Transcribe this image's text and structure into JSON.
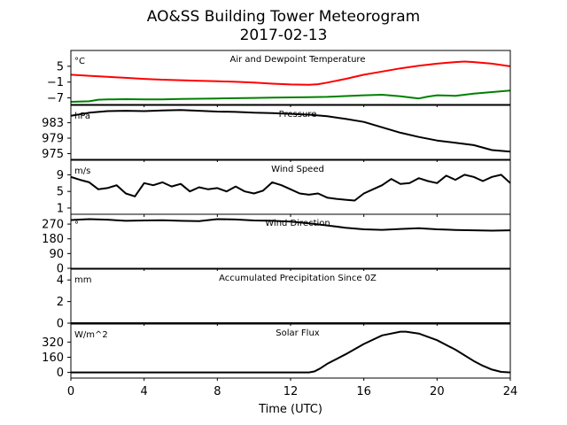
{
  "chart_data": {
    "type": "line",
    "title": "AO&SS Building Tower Meteorogram",
    "subtitle": "2017-02-13",
    "xlabel": "Time (UTC)",
    "xlim": [
      0,
      24
    ],
    "xticks": [
      0,
      4,
      8,
      12,
      16,
      20,
      24
    ],
    "panels": [
      {
        "id": "temperature",
        "title": "Air and Dewpoint Temperature",
        "unit": "°C",
        "ylim": [
          -9.5,
          11
        ],
        "yticks": [
          5,
          -1,
          -7
        ],
        "ytick_labels": [
          "5",
          "−1",
          "−7"
        ],
        "series": [
          {
            "color": "#ff0000",
            "x": [
              0,
              1,
              2,
              3,
              4,
              5,
              6,
              7,
              8,
              9,
              10,
              11,
              12,
              13,
              13.5,
              14,
              15,
              16,
              17,
              18,
              19,
              20,
              21,
              21.5,
              22,
              23,
              24
            ],
            "values": [
              1.8,
              1.4,
              1.0,
              0.6,
              0.2,
              -0.1,
              -0.3,
              -0.5,
              -0.7,
              -0.9,
              -1.2,
              -1.6,
              -1.9,
              -2.0,
              -1.8,
              -1.2,
              0.2,
              1.8,
              3.0,
              4.2,
              5.2,
              6.0,
              6.6,
              6.8,
              6.6,
              6.0,
              5.0
            ]
          },
          {
            "color": "#008000",
            "x": [
              0,
              1,
              1.5,
              2,
              3,
              4,
              5,
              6,
              7,
              8,
              9,
              10,
              11,
              12,
              13,
              14,
              15,
              16,
              17,
              18,
              19,
              19.5,
              20,
              21,
              22,
              23,
              24
            ],
            "values": [
              -8.5,
              -8.3,
              -7.7,
              -7.6,
              -7.5,
              -7.6,
              -7.6,
              -7.4,
              -7.3,
              -7.2,
              -7.1,
              -7.0,
              -6.9,
              -6.8,
              -6.7,
              -6.6,
              -6.3,
              -6.0,
              -5.8,
              -6.4,
              -7.2,
              -6.5,
              -6.0,
              -6.2,
              -5.4,
              -4.8,
              -4.2
            ]
          }
        ]
      },
      {
        "id": "pressure",
        "title": "Pressure",
        "unit": "hPa",
        "ylim": [
          973.5,
          987.5
        ],
        "yticks": [
          983,
          979,
          975
        ],
        "ytick_labels": [
          "983",
          "979",
          "975"
        ],
        "series": [
          {
            "color": "#000000",
            "x": [
              0,
              1,
              2,
              3,
              4,
              5,
              6,
              7,
              8,
              9,
              10,
              11,
              12,
              13,
              14,
              15,
              16,
              17,
              18,
              19,
              20,
              21,
              22,
              23,
              24
            ],
            "values": [
              984.8,
              985.6,
              986.0,
              986.1,
              986.0,
              986.2,
              986.3,
              986.1,
              985.9,
              985.8,
              985.6,
              985.5,
              985.3,
              985.1,
              984.7,
              984.0,
              983.2,
              981.8,
              980.4,
              979.3,
              978.4,
              977.8,
              977.2,
              975.9,
              975.5
            ]
          }
        ]
      },
      {
        "id": "wind_speed",
        "title": "Wind Speed",
        "unit": "m/s",
        "ylim": [
          -0.5,
          12.5
        ],
        "yticks": [
          9,
          5,
          1
        ],
        "ytick_labels": [
          "9",
          "5",
          "1"
        ],
        "series": [
          {
            "color": "#000000",
            "x": [
              0,
              0.5,
              1,
              1.5,
              2,
              2.5,
              3,
              3.5,
              4,
              4.5,
              5,
              5.5,
              6,
              6.5,
              7,
              7.5,
              8,
              8.5,
              9,
              9.5,
              10,
              10.5,
              11,
              11.5,
              12,
              12.5,
              13,
              13.5,
              14,
              14.5,
              15,
              15.5,
              16,
              16.5,
              17,
              17.5,
              18,
              18.5,
              19,
              19.5,
              20,
              20.5,
              21,
              21.5,
              22,
              22.5,
              23,
              23.5,
              24
            ],
            "values": [
              8.5,
              7.8,
              7.2,
              5.5,
              5.8,
              6.5,
              4.5,
              3.8,
              7.0,
              6.5,
              7.2,
              6.2,
              6.8,
              5.0,
              6.0,
              5.5,
              5.8,
              5.0,
              6.2,
              5.0,
              4.5,
              5.2,
              7.2,
              6.5,
              5.5,
              4.5,
              4.2,
              4.5,
              3.5,
              3.2,
              3.0,
              2.8,
              4.5,
              5.5,
              6.5,
              8.0,
              6.8,
              7.0,
              8.2,
              7.5,
              7.0,
              8.8,
              7.8,
              9.0,
              8.5,
              7.5,
              8.5,
              9.0,
              7.0
            ]
          }
        ]
      },
      {
        "id": "wind_direction",
        "title": "Wind Direction",
        "unit": "°",
        "ylim": [
          0,
          330
        ],
        "yticks": [
          270,
          180,
          90,
          0
        ],
        "ytick_labels": [
          "270",
          "180",
          "90",
          "0"
        ],
        "series": [
          {
            "color": "#000000",
            "x": [
              0,
              1,
              2,
              3,
              4,
              5,
              6,
              7,
              8,
              9,
              10,
              11,
              12,
              13,
              14,
              15,
              16,
              17,
              18,
              19,
              20,
              21,
              22,
              23,
              24
            ],
            "values": [
              295,
              300,
              297,
              290,
              292,
              294,
              290,
              288,
              300,
              298,
              292,
              290,
              285,
              275,
              262,
              248,
              238,
              235,
              240,
              245,
              238,
              234,
              232,
              230,
              232
            ]
          }
        ]
      },
      {
        "id": "precipitation",
        "title": "Accumulated Precipitation Since 0Z",
        "unit": "mm",
        "ylim": [
          0,
          5
        ],
        "yticks": [
          4,
          2,
          0
        ],
        "ytick_labels": [
          "4",
          "2",
          "0"
        ],
        "series": [
          {
            "color": "#000000",
            "x": [
              0,
              24
            ],
            "values": [
              0,
              0
            ]
          }
        ]
      },
      {
        "id": "solar_flux",
        "title": "Solar Flux",
        "unit": "W/m^2",
        "ylim": [
          -60,
          510
        ],
        "yticks": [
          320,
          160,
          0
        ],
        "ytick_labels": [
          "320",
          "160",
          "0"
        ],
        "series": [
          {
            "color": "#000000",
            "x": [
              0,
              12,
              13,
              13.3,
              13.6,
              14,
              15,
              16,
              17,
              18,
              18.3,
              19,
              20,
              21,
              22,
              22.5,
              23,
              23.5,
              24
            ],
            "values": [
              0,
              0,
              0,
              10,
              40,
              90,
              190,
              300,
              390,
              430,
              430,
              410,
              340,
              240,
              120,
              70,
              30,
              5,
              0
            ]
          }
        ]
      }
    ]
  }
}
